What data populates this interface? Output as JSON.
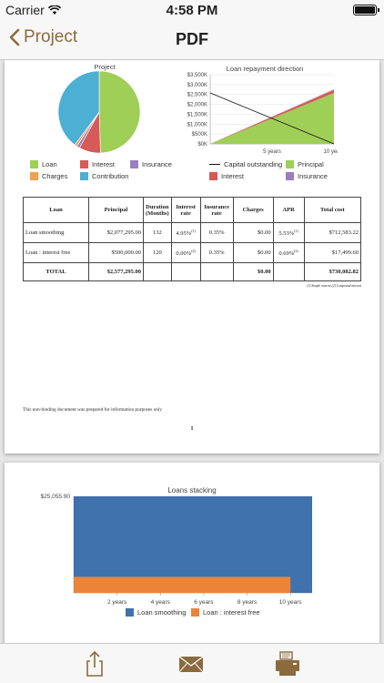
{
  "status_bar": {
    "carrier": "Carrier",
    "time": "4:58 PM"
  },
  "nav": {
    "back_label": "Project",
    "title": "PDF"
  },
  "colors": {
    "accent": "#8b6b3e",
    "loan": "#9fcf57",
    "interest": "#d65a55",
    "insurance": "#9b7ec0",
    "charges": "#f2a14c",
    "contribution": "#4bb0d3",
    "capital_line": "#111111",
    "loan_smoothing_bar": "#3f71ad",
    "loan_free_bar": "#e9843a"
  },
  "page1": {
    "pie_chart": {
      "chart_data": {
        "type": "pie",
        "title": "Project",
        "slices": [
          {
            "label": "Loan",
            "value": 49.5,
            "color": "#9fcf57"
          },
          {
            "label": "Interest",
            "value": 8.5,
            "color": "#d65a55"
          },
          {
            "label": "Insurance",
            "value": 1.2,
            "color": "#9b7ec0"
          },
          {
            "label": "Charges",
            "value": 1.0,
            "color": "#f2a14c"
          },
          {
            "label": "Contribution",
            "value": 39.8,
            "color": "#4bb0d3"
          }
        ],
        "legend_position": "bottom"
      }
    },
    "area_chart": {
      "chart_data": {
        "type": "area",
        "title": "Loan repayment direction",
        "x_ticks": [
          "5 years",
          "10 years"
        ],
        "y_ticks": [
          "$0K",
          "$500K",
          "$1,000K",
          "$1,500K",
          "$2,000K",
          "$2,500K",
          "$3,000K",
          "$3,500K"
        ],
        "ylim": [
          0,
          3500
        ],
        "x": [
          0,
          10
        ],
        "series": [
          {
            "name": "Principal",
            "values": [
              0,
              2577
            ],
            "color": "#9fcf57"
          },
          {
            "name": "Interest",
            "values": [
              0,
              150
            ],
            "color": "#d65a55"
          },
          {
            "name": "Insurance",
            "values": [
              0,
              30
            ],
            "color": "#9b7ec0"
          },
          {
            "name": "Capital outstanding",
            "values": [
              2577,
              0
            ],
            "color": "#111111"
          }
        ],
        "legend_position": "bottom"
      }
    },
    "table": {
      "headers": [
        "Loan",
        "Principal",
        "Duration (Months)",
        "Interest rate",
        "Insurance rate",
        "Charges",
        "APR",
        "Total cost"
      ],
      "rows": [
        {
          "loan": "Loan smoothing",
          "principal": "$2,077,295.00",
          "duration": "132",
          "interest": "4.95%",
          "interest_note": "(1)",
          "insurance": "0.35%",
          "charges": "$0.00",
          "apr": "5.53%",
          "apr_note": "(1)",
          "total": "$712,583.22"
        },
        {
          "loan": "Loan : interest free",
          "principal": "$500,000.00",
          "duration": "120",
          "interest": "0.00%",
          "interest_note": "(2)",
          "insurance": "0.35%",
          "charges": "$0.00",
          "apr": "0.69%",
          "apr_note": "(2)",
          "total": "$17,499.60"
        }
      ],
      "total": {
        "label": "TOTAL",
        "principal": "$2,577,295.00",
        "charges": "$0.00",
        "total": "$730,082.82"
      }
    },
    "footnote": "(1) Simple interest  (2) Compound interest",
    "disclaimer": "This non-binding document was prepared for information purposes only",
    "page_number": "1"
  },
  "page2": {
    "bar_chart": {
      "chart_data": {
        "type": "bar",
        "title": "Loans stacking",
        "y_max_label": "$25,055.90",
        "ylim": [
          0,
          25055.9
        ],
        "x_ticks": [
          "2 years",
          "4 years",
          "6 years",
          "8 years",
          "10 years"
        ],
        "series": [
          {
            "name": "Loan smoothing",
            "values": [
              25055.9
            ],
            "x_range_years": [
              0,
              11
            ],
            "color": "#3f71ad"
          },
          {
            "name": "Loan : interest free",
            "values": [
              4166.6
            ],
            "x_range_years": [
              0,
              10
            ],
            "color": "#e9843a"
          }
        ],
        "legend_position": "bottom"
      }
    }
  },
  "tab_bar": {
    "icons": [
      "share-icon",
      "mail-icon",
      "printer-icon"
    ]
  }
}
